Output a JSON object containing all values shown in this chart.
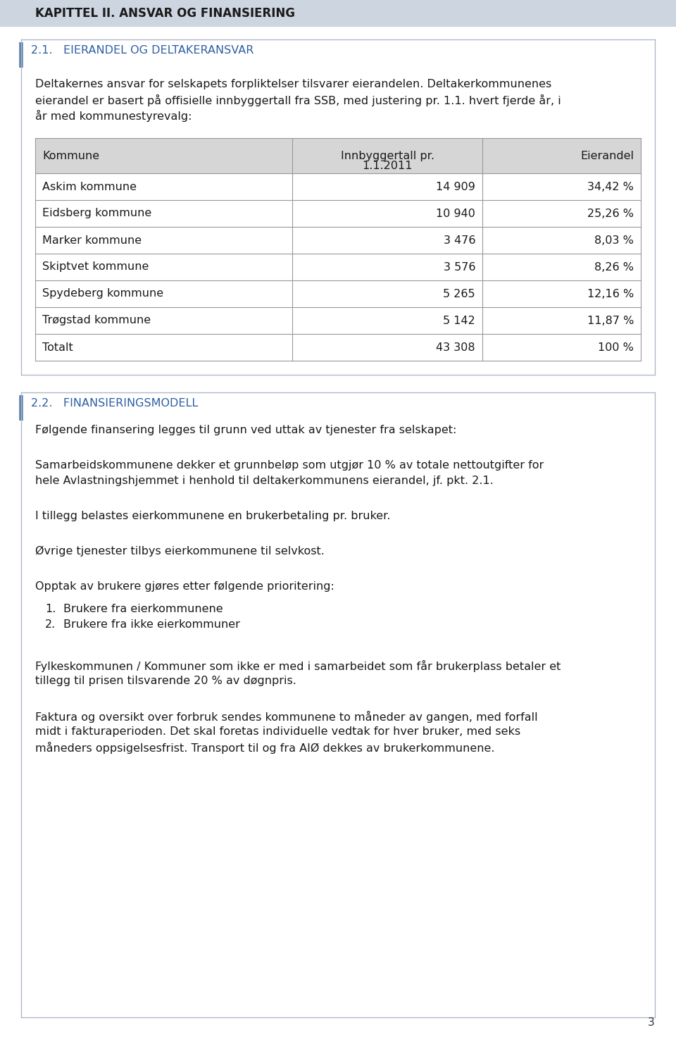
{
  "page_bg": "#ffffff",
  "header_bg": "#cdd5e0",
  "header_text": "KAPITTEL II. ANSVAR OG FINANSIERING",
  "header_text_color": "#1a1a1a",
  "section_line_color": "#5b7faa",
  "section21_title": "2.1.   EIERANDEL OG DELTAKERANSVAR",
  "section21_title_color": "#2e5fa3",
  "para1_line1": "Deltakernes ansvar for selskapets forpliktelser tilsvarer eierandelen. Deltakerkommunenes",
  "para1_line2": "eierandel er basert på offisielle innbyggertall fra SSB, med justering pr. 1.1. hvert fjerde år, i",
  "para1_line3": "år med kommunestyrevalg:",
  "table_header_bg": "#d6d6d6",
  "table_col1_header_line1": "Kommune",
  "table_col2_header_line1": "Innbyggertall pr.",
  "table_col2_header_line2": "1.1.2011",
  "table_col3_header_line1": "Eierandel",
  "table_rows": [
    [
      "Askim kommune",
      "14 909",
      "34,42 %"
    ],
    [
      "Eidsberg kommune",
      "10 940",
      "25,26 %"
    ],
    [
      "Marker kommune",
      "3 476",
      "8,03 %"
    ],
    [
      "Skiptvet kommune",
      "3 576",
      "8,26 %"
    ],
    [
      "Spydeberg kommune",
      "5 265",
      "12,16 %"
    ],
    [
      "Trøgstad kommune",
      "5 142",
      "11,87 %"
    ],
    [
      "Totalt",
      "43 308",
      "100 %"
    ]
  ],
  "table_border_color": "#999999",
  "section22_title": "2.2.   FINANSIERINGSMODELL",
  "section22_title_color": "#2e5fa3",
  "para2": "Følgende finansering legges til grunn ved uttak av tjenester fra selskapet:",
  "para3_line1": "Samarbeidskommunene dekker et grunnbeløp som utgjør 10 % av totale nettoutgifter for",
  "para3_line2": "hele Avlastningshjemmet i henhold til deltakerkommunens eierandel, jf. pkt. 2.1.",
  "para4": "I tillegg belastes eierkommunene en brukerbetaling pr. bruker.",
  "para5": "Øvrige tjenester tilbys eierkommunene til selvkost.",
  "para6": "Opptak av brukere gjøres etter følgende prioritering:",
  "list_item1": "Brukere fra eierkommunene",
  "list_item2": "Brukere fra ikke eierkommuner",
  "para7_line1": "Fylkeskommunen / Kommuner som ikke er med i samarbeidet som får brukerplass betaler et",
  "para7_line2": "tillegg til prisen tilsvarende 20 % av døgnpris.",
  "para8_line1": "Faktura og oversikt over forbruk sendes kommunene to måneder av gangen, med forfall",
  "para8_line2": "midt i fakturaperioden. Det skal foretas individuelle vedtak for hver bruker, med seks",
  "para8_line3": "måneders oppsigelsesfrist. Transport til og fra AIØ dekkes av brukerkommunene.",
  "page_number": "3",
  "body_font_size": 11.5,
  "header_font_size": 12,
  "section_title_font_size": 11.5,
  "table_font_size": 11.5
}
